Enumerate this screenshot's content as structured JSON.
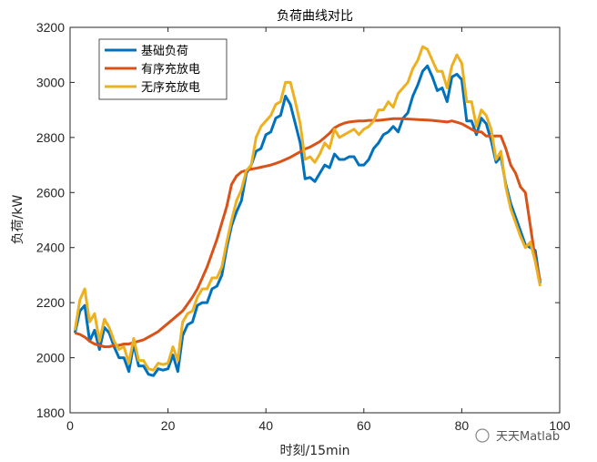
{
  "chart_data": {
    "type": "line",
    "title": "负荷曲线对比",
    "xlabel": "时刻/15min",
    "ylabel": "负荷/kW",
    "xlim": [
      0,
      100
    ],
    "ylim": [
      1800,
      3200
    ],
    "xticks": [
      "0",
      "20",
      "40",
      "60",
      "80",
      "100"
    ],
    "yticks": [
      "1800",
      "2000",
      "2200",
      "2400",
      "2600",
      "2800",
      "3000",
      "3200"
    ],
    "grid": false,
    "legend_position": "top-left",
    "x_start": 1,
    "series": [
      {
        "name": "基础负荷",
        "color": "#0072BD",
        "values": [
          2090,
          2170,
          2190,
          2060,
          2100,
          2030,
          2110,
          2090,
          2040,
          2000,
          2000,
          1950,
          2050,
          1970,
          1970,
          1940,
          1935,
          1960,
          1955,
          1960,
          2010,
          1950,
          2080,
          2120,
          2130,
          2190,
          2200,
          2200,
          2250,
          2260,
          2300,
          2400,
          2480,
          2530,
          2570,
          2670,
          2700,
          2750,
          2760,
          2810,
          2820,
          2870,
          2880,
          2950,
          2920,
          2850,
          2780,
          2650,
          2655,
          2640,
          2670,
          2700,
          2690,
          2740,
          2720,
          2720,
          2730,
          2730,
          2700,
          2700,
          2720,
          2760,
          2780,
          2810,
          2820,
          2840,
          2820,
          2870,
          2890,
          2950,
          2990,
          3040,
          3060,
          3020,
          2970,
          2980,
          2930,
          3020,
          3030,
          3010,
          2860,
          2860,
          2810,
          2870,
          2850,
          2790,
          2710,
          2730,
          2630,
          2560,
          2510,
          2460,
          2410,
          2400,
          2390,
          2270
        ]
      },
      {
        "name": "有序充放电",
        "color": "#D95319",
        "values": [
          2090,
          2085,
          2075,
          2060,
          2050,
          2045,
          2040,
          2040,
          2045,
          2045,
          2050,
          2050,
          2055,
          2060,
          2065,
          2075,
          2085,
          2095,
          2110,
          2125,
          2140,
          2155,
          2170,
          2195,
          2220,
          2250,
          2290,
          2330,
          2380,
          2430,
          2490,
          2550,
          2630,
          2660,
          2675,
          2680,
          2685,
          2688,
          2692,
          2696,
          2700,
          2706,
          2712,
          2720,
          2728,
          2738,
          2748,
          2758,
          2765,
          2775,
          2785,
          2800,
          2815,
          2835,
          2845,
          2852,
          2856,
          2858,
          2860,
          2860,
          2862,
          2862,
          2862,
          2864,
          2866,
          2868,
          2868,
          2868,
          2867,
          2866,
          2865,
          2864,
          2863,
          2862,
          2860,
          2858,
          2856,
          2860,
          2855,
          2850,
          2840,
          2830,
          2820,
          2820,
          2805,
          2805,
          2805,
          2805,
          2760,
          2700,
          2670,
          2620,
          2600,
          2480,
          2360,
          2280
        ]
      },
      {
        "name": "无序充放电",
        "color": "#EDB120",
        "values": [
          2100,
          2210,
          2250,
          2130,
          2160,
          2060,
          2140,
          2110,
          2060,
          2030,
          2040,
          1980,
          2070,
          1990,
          1990,
          1960,
          1955,
          1980,
          1975,
          1980,
          2040,
          1990,
          2130,
          2160,
          2170,
          2220,
          2250,
          2250,
          2290,
          2290,
          2330,
          2420,
          2500,
          2570,
          2610,
          2680,
          2700,
          2800,
          2840,
          2860,
          2880,
          2920,
          2930,
          3000,
          3000,
          2930,
          2850,
          2720,
          2730,
          2710,
          2740,
          2780,
          2760,
          2830,
          2800,
          2810,
          2820,
          2830,
          2810,
          2830,
          2840,
          2860,
          2900,
          2900,
          2930,
          2910,
          2960,
          2980,
          3000,
          3050,
          3080,
          3130,
          3120,
          3080,
          3040,
          3040,
          2980,
          3060,
          3100,
          3070,
          2930,
          2930,
          2840,
          2900,
          2880,
          2830,
          2720,
          2750,
          2620,
          2540,
          2490,
          2440,
          2400,
          2420,
          2350,
          2260
        ]
      }
    ]
  },
  "watermark": "天天Matlab"
}
